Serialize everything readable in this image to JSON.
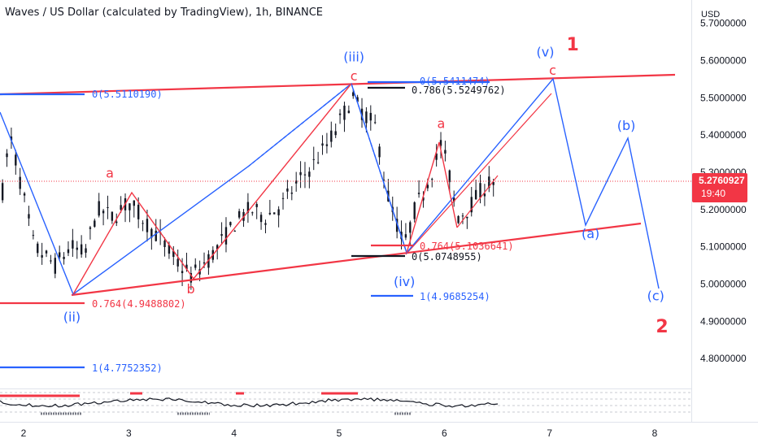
{
  "header": {
    "title": "Waves / US Dollar (calculated by TradingView), 1h, BINANCE",
    "currency": "USD"
  },
  "colors": {
    "blue": "#2962ff",
    "red": "#f23645",
    "candle": "#131722",
    "axis_text": "#131722",
    "price_badge": "#f23645"
  },
  "price_badge": {
    "value": "5.2760927",
    "countdown": "19:40"
  },
  "chart_data": {
    "type": "candlestick",
    "title": "Waves / US Dollar (calculated by TradingView), 1h, BINANCE",
    "xlabel": "",
    "ylabel": "USD",
    "x_ticks": [
      "2",
      "3",
      "4",
      "5",
      "6",
      "7",
      "8"
    ],
    "y_ticks": [
      "4.8000000",
      "4.9000000",
      "5.0000000",
      "5.1000000",
      "5.2000000",
      "5.3000000",
      "5.4000000",
      "5.5000000",
      "5.6000000",
      "5.7000000"
    ],
    "xlim": [
      1.78,
      8.3
    ],
    "ylim": [
      4.738,
      5.762
    ],
    "last_price": 5.2760927,
    "price_path": [
      [
        1.8,
        5.25
      ],
      [
        1.87,
        5.4
      ],
      [
        1.95,
        5.3
      ],
      [
        2.1,
        5.1
      ],
      [
        2.3,
        5.05
      ],
      [
        2.45,
        5.1
      ],
      [
        2.58,
        5.08
      ],
      [
        2.7,
        5.2
      ],
      [
        2.85,
        5.18
      ],
      [
        3.0,
        5.22
      ],
      [
        3.15,
        5.17
      ],
      [
        3.3,
        5.12
      ],
      [
        3.45,
        5.06
      ],
      [
        3.6,
        5.02
      ],
      [
        3.8,
        5.08
      ],
      [
        4.0,
        5.16
      ],
      [
        4.15,
        5.2
      ],
      [
        4.3,
        5.18
      ],
      [
        4.45,
        5.21
      ],
      [
        4.6,
        5.27
      ],
      [
        4.75,
        5.32
      ],
      [
        4.9,
        5.38
      ],
      [
        5.05,
        5.46
      ],
      [
        5.12,
        5.5
      ],
      [
        5.2,
        5.47
      ],
      [
        5.35,
        5.42
      ],
      [
        5.45,
        5.25
      ],
      [
        5.55,
        5.16
      ],
      [
        5.62,
        5.1
      ],
      [
        5.72,
        5.2
      ],
      [
        5.82,
        5.26
      ],
      [
        5.92,
        5.33
      ],
      [
        5.97,
        5.38
      ],
      [
        6.05,
        5.29
      ],
      [
        6.12,
        5.18
      ],
      [
        6.22,
        5.2
      ],
      [
        6.32,
        5.24
      ],
      [
        6.42,
        5.27
      ],
      [
        6.5,
        5.28
      ]
    ],
    "wave_labels": [
      {
        "text": "(iii)",
        "x": 5.14,
        "y": 5.598,
        "color": "blue"
      },
      {
        "text": "c",
        "x": 5.14,
        "y": 5.547,
        "color": "red"
      },
      {
        "text": "(ii)",
        "x": 2.46,
        "y": 4.9,
        "color": "blue"
      },
      {
        "text": "a",
        "x": 2.82,
        "y": 5.286,
        "color": "red"
      },
      {
        "text": "b",
        "x": 3.59,
        "y": 4.975,
        "color": "red"
      },
      {
        "text": "a",
        "x": 5.97,
        "y": 5.419,
        "color": "red"
      },
      {
        "text": "(iv)",
        "x": 5.62,
        "y": 4.995,
        "color": "blue"
      },
      {
        "text": "(v)",
        "x": 6.96,
        "y": 5.611,
        "color": "blue"
      },
      {
        "text": "c",
        "x": 7.03,
        "y": 5.562,
        "color": "red"
      },
      {
        "text": "1",
        "x": 7.22,
        "y": 5.627,
        "color": "red"
      },
      {
        "text": "(b)",
        "x": 7.73,
        "y": 5.413,
        "color": "blue"
      },
      {
        "text": "(a)",
        "x": 7.39,
        "y": 5.123,
        "color": "blue"
      },
      {
        "text": "(c)",
        "x": 8.01,
        "y": 4.956,
        "color": "blue"
      },
      {
        "text": "2",
        "x": 8.07,
        "y": 4.87,
        "color": "red"
      }
    ],
    "fib_levels": [
      {
        "text": "0(5.5110190)",
        "color": "blue"
      },
      {
        "text": "0(5.5411474)",
        "color": "blue"
      },
      {
        "text": "0.786(5.5249762)",
        "color": "black"
      },
      {
        "text": "0.764(4.9488802)",
        "color": "red"
      },
      {
        "text": "1(4.7752352)",
        "color": "blue"
      },
      {
        "text": "0.764(5.1036641)",
        "color": "red"
      },
      {
        "text": "0(5.0748955)",
        "color": "black"
      },
      {
        "text": "1(4.9685254)",
        "color": "blue"
      }
    ],
    "grid": false,
    "legend": "none"
  }
}
